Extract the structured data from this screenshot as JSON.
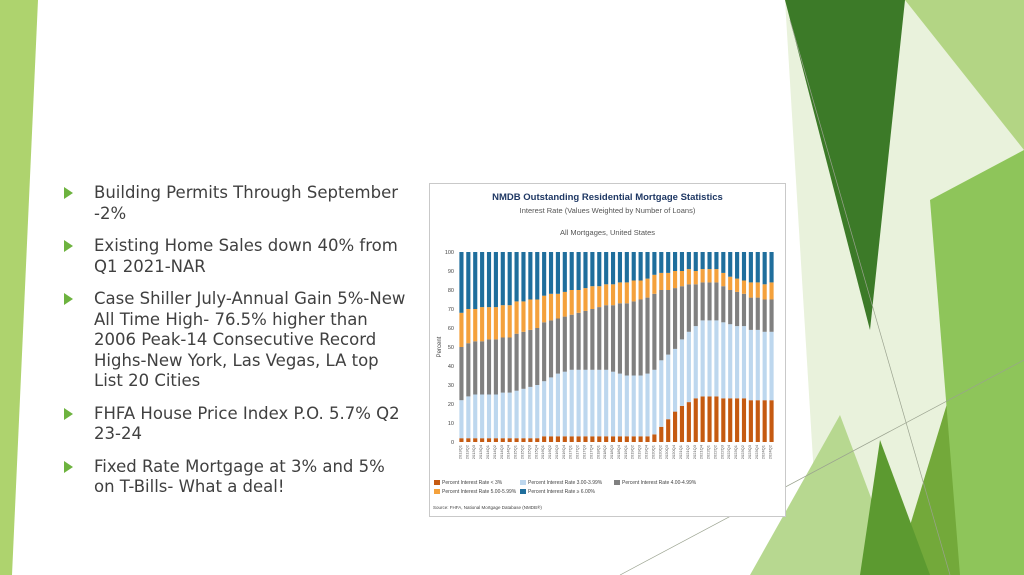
{
  "slide": {
    "bullets": [
      "Building Permits Through September -2%",
      "Existing Home Sales down 40% from Q1 2021-NAR",
      "Case Shiller July-Annual Gain 5%-New All Time High- 76.5% higher than 2006 Peak-14 Consecutive Record Highs-New York, Las Vegas, LA top List 20 Cities",
      "FHFA House Price Index P.O. 5.7% Q2 23-24",
      "Fixed Rate Mortgage at 3% and 5% on T-Bills- What a deal!"
    ],
    "accent_color": "#6db33f"
  },
  "chart_data": {
    "type": "bar",
    "stacked": true,
    "title": "NMDB Outstanding Residential Mortgage Statistics",
    "subtitle": "Interest Rate (Values Weighted by Number of Loans)",
    "note": "All Mortgages, United States",
    "ylabel": "Percent",
    "ylim": [
      0,
      100
    ],
    "yticks": [
      0,
      10,
      20,
      30,
      40,
      50,
      60,
      70,
      80,
      90,
      100
    ],
    "categories": [
      "2013Q1",
      "2013Q2",
      "2013Q3",
      "2013Q4",
      "2014Q1",
      "2014Q2",
      "2014Q3",
      "2014Q4",
      "2015Q1",
      "2015Q2",
      "2015Q3",
      "2015Q4",
      "2016Q1",
      "2016Q2",
      "2016Q3",
      "2016Q4",
      "2017Q1",
      "2017Q2",
      "2017Q3",
      "2017Q4",
      "2018Q1",
      "2018Q2",
      "2018Q3",
      "2018Q4",
      "2019Q1",
      "2019Q2",
      "2019Q3",
      "2019Q4",
      "2020Q1",
      "2020Q2",
      "2020Q3",
      "2020Q4",
      "2021Q1",
      "2021Q2",
      "2021Q3",
      "2021Q4",
      "2022Q1",
      "2022Q2",
      "2022Q3",
      "2022Q4",
      "2023Q1",
      "2023Q2",
      "2023Q3",
      "2023Q4",
      "2024Q1",
      "2024Q2"
    ],
    "series": [
      {
        "name": "Percent Interest Rate < 3%",
        "color": "#c55a11",
        "values": [
          2,
          2,
          2,
          2,
          2,
          2,
          2,
          2,
          2,
          2,
          2,
          2,
          3,
          3,
          3,
          3,
          3,
          3,
          3,
          3,
          3,
          3,
          3,
          3,
          3,
          3,
          3,
          3,
          4,
          8,
          12,
          16,
          19,
          21,
          23,
          24,
          24,
          24,
          23,
          23,
          23,
          23,
          22,
          22,
          22,
          22
        ]
      },
      {
        "name": "Percent Interest Rate 3.00-3.99%",
        "color": "#bdd7ee",
        "values": [
          20,
          22,
          23,
          23,
          23,
          23,
          24,
          24,
          25,
          26,
          27,
          28,
          29,
          31,
          33,
          34,
          35,
          35,
          35,
          35,
          35,
          35,
          34,
          33,
          32,
          32,
          32,
          33,
          34,
          35,
          34,
          33,
          35,
          37,
          38,
          40,
          40,
          40,
          40,
          39,
          38,
          38,
          37,
          37,
          36,
          36
        ]
      },
      {
        "name": "Percent Interest Rate 4.00-4.99%",
        "color": "#808080",
        "values": [
          28,
          28,
          28,
          28,
          29,
          29,
          29,
          29,
          30,
          30,
          30,
          30,
          31,
          30,
          29,
          29,
          29,
          30,
          31,
          32,
          33,
          34,
          35,
          37,
          38,
          39,
          40,
          40,
          40,
          37,
          34,
          32,
          28,
          25,
          22,
          20,
          20,
          20,
          19,
          18,
          18,
          17,
          17,
          17,
          17,
          17
        ]
      },
      {
        "name": "Percent Interest Rate 5.00-5.99%",
        "color": "#f4a13c",
        "values": [
          18,
          18,
          17,
          18,
          17,
          17,
          17,
          17,
          17,
          16,
          16,
          15,
          14,
          14,
          13,
          13,
          13,
          12,
          12,
          12,
          11,
          11,
          11,
          11,
          11,
          11,
          10,
          10,
          10,
          9,
          9,
          9,
          8,
          8,
          7,
          7,
          7,
          7,
          7,
          7,
          7,
          7,
          8,
          8,
          8,
          9
        ]
      },
      {
        "name": "Percent Interest Rate ≥ 6.00%",
        "color": "#1f6e9c",
        "values": [
          32,
          30,
          30,
          29,
          29,
          29,
          28,
          28,
          26,
          26,
          25,
          25,
          23,
          22,
          22,
          21,
          20,
          20,
          19,
          18,
          18,
          17,
          17,
          16,
          16,
          15,
          15,
          14,
          12,
          11,
          11,
          10,
          10,
          9,
          10,
          9,
          9,
          9,
          11,
          13,
          14,
          15,
          16,
          16,
          17,
          16
        ]
      }
    ],
    "legend": "bottom",
    "source": "Source: FHFA, National Mortgage Database (NMDB®)"
  }
}
